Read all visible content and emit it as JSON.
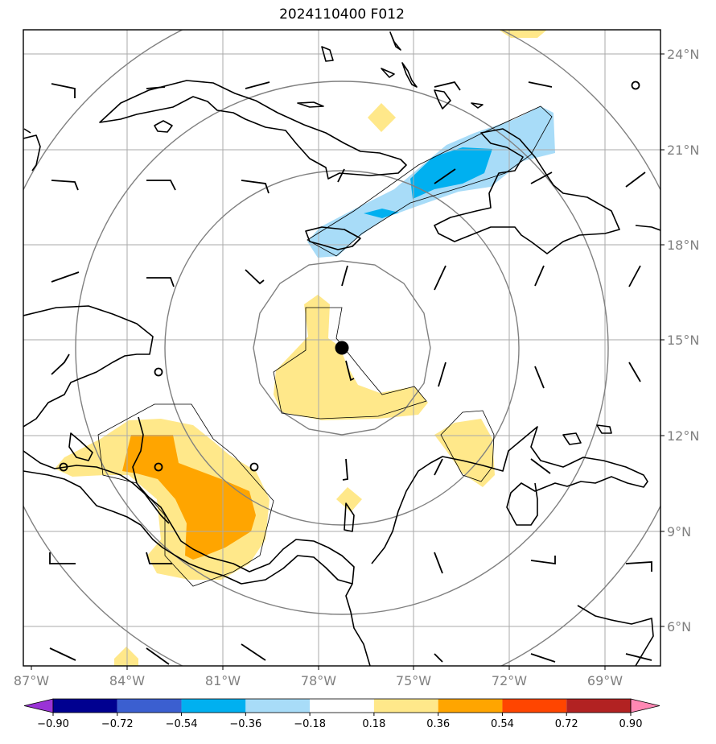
{
  "title": "2024110400 F012",
  "map": {
    "lon_ticks": [
      "87°W",
      "84°W",
      "81°W",
      "78°W",
      "75°W",
      "72°W",
      "69°W"
    ],
    "lat_ticks": [
      "24°N",
      "21°N",
      "18°N",
      "15°N",
      "12°N",
      "9°N",
      "6°N"
    ],
    "lon_range": [
      -87,
      -67
    ],
    "lat_range": [
      4.8,
      25.7
    ],
    "center": {
      "lon": -77.3,
      "lat": 14.8
    },
    "range_ring_count": 4
  },
  "colorbar": {
    "levels": [
      "−0.90",
      "−0.72",
      "−0.54",
      "−0.36",
      "−0.18",
      "0.18",
      "0.36",
      "0.54",
      "0.72",
      "0.90"
    ],
    "colors": [
      "#9a33d6",
      "#000090",
      "#3b5fd0",
      "#00b0f0",
      "#a8dcf8",
      "#ffffff",
      "#ffe88a",
      "#ffa500",
      "#ff4500",
      "#b22222",
      "#ff88b4"
    ]
  },
  "colors": {
    "positive_low": "#ffe88a",
    "positive_mid": "#ffa500",
    "negative_low": "#a8dcf8",
    "negative_mid": "#00b0f0"
  }
}
